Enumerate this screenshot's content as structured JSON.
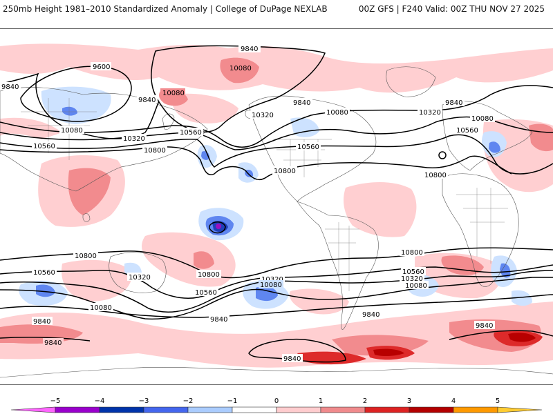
{
  "header": {
    "title": "250mb Height 1981–2010 Standardized Anomaly | College of DuPage NEXLAB",
    "run_info": "00Z GFS | F240 Valid: 00Z THU NOV 27 2025"
  },
  "map": {
    "variable": "250mb geopotential height (m) with standardized anomaly shading",
    "contours": {
      "9600": "9600",
      "9840": "9840",
      "10080": "10080",
      "10320": "10320",
      "10560": "10560",
      "10800": "10800"
    }
  },
  "colorbar": {
    "ticks": [
      "−5",
      "−4",
      "−3",
      "−2",
      "−1",
      "0",
      "1",
      "2",
      "3",
      "4",
      "5"
    ],
    "colors": [
      "#ff66ff",
      "#9900cc",
      "#0033aa",
      "#4466ee",
      "#aaccff",
      "#ffffff",
      "#ffccce",
      "#f08a8c",
      "#dd2222",
      "#b30000",
      "#ff9900",
      "#ffcc33"
    ]
  },
  "colors": {
    "pos1": "#ffcfd1",
    "pos2": "#f28b8e",
    "pos3": "#dd2a2a",
    "pos4": "#b80000",
    "neg1": "#cde2ff",
    "neg2": "#5f86f0",
    "neg3": "#1f3fb8",
    "neg4": "#9b10c0"
  }
}
